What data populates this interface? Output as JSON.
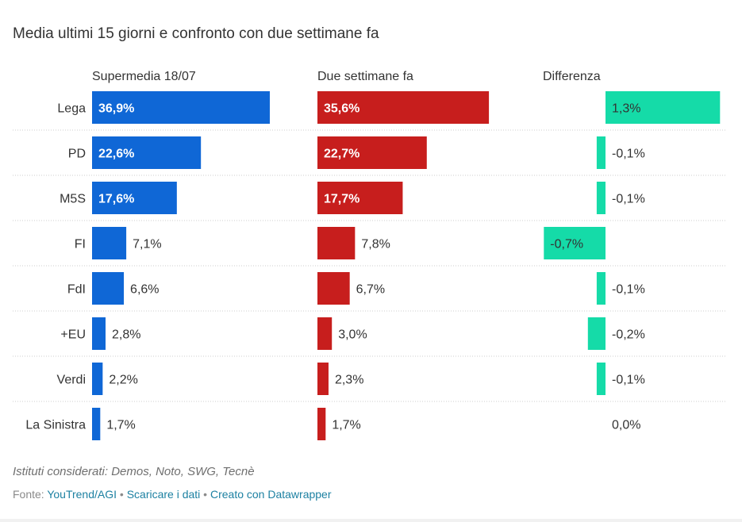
{
  "title": "Media ultimi 15 giorni e confronto con due settimane fa",
  "columns": {
    "current": "Supermedia 18/07",
    "previous": "Due settimane fa",
    "difference": "Differenza"
  },
  "colors": {
    "current": "#0f67d6",
    "previous": "#c71e1d",
    "difference": "#15dba8",
    "divider": "#cccccc"
  },
  "chart_data": {
    "type": "bar",
    "categories": [
      "Lega",
      "PD",
      "M5S",
      "FI",
      "FdI",
      "+EU",
      "Verdi",
      "La Sinistra"
    ],
    "series": [
      {
        "name": "Supermedia 18/07",
        "values": [
          36.9,
          22.6,
          17.6,
          7.1,
          6.6,
          2.8,
          2.2,
          1.7
        ],
        "labels": [
          "36,9%",
          "22,6%",
          "17,6%",
          "7,1%",
          "6,6%",
          "2,8%",
          "2,2%",
          "1,7%"
        ]
      },
      {
        "name": "Due settimane fa",
        "values": [
          35.6,
          22.7,
          17.7,
          7.8,
          6.7,
          3.0,
          2.3,
          1.7
        ],
        "labels": [
          "35,6%",
          "22,7%",
          "17,7%",
          "7,8%",
          "6,7%",
          "3,0%",
          "2,3%",
          "1,7%"
        ]
      },
      {
        "name": "Differenza",
        "values": [
          1.3,
          -0.1,
          -0.1,
          -0.7,
          -0.1,
          -0.2,
          -0.1,
          0.0
        ],
        "labels": [
          "1,3%",
          "-0,1%",
          "-0,1%",
          "-0,7%",
          "-0,1%",
          "-0,2%",
          "-0,1%",
          "0,0%"
        ]
      }
    ]
  },
  "note": "Istituti considerati: Demos, Noto, SWG, Tecnè",
  "footer": {
    "prefix": "Fonte: ",
    "source_link": "YouTrend/AGI",
    "separator": " • ",
    "download_link": "Scaricare i dati",
    "created_link": "Creato con Datawrapper"
  }
}
